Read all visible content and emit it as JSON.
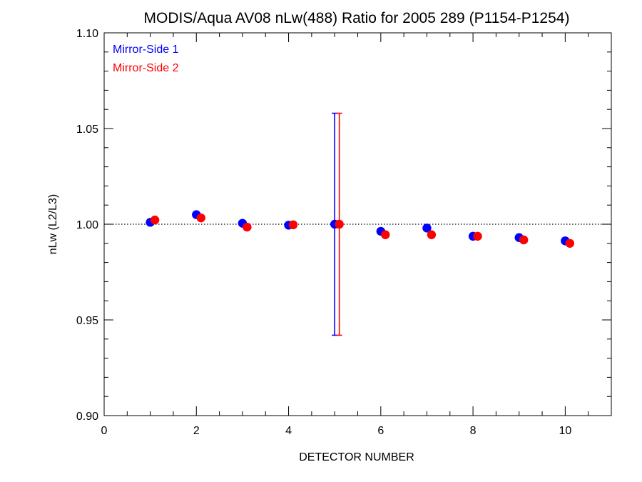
{
  "chart_data": {
    "type": "scatter",
    "title": "MODIS/Aqua AV08 nLw(488) Ratio for 2005 289 (P1154-P1254)",
    "xlabel": "DETECTOR NUMBER",
    "ylabel": "nLw (L2/L3)",
    "xlim": [
      0,
      11
    ],
    "ylim": [
      0.9,
      1.1
    ],
    "xticks": [
      0,
      2,
      4,
      6,
      8,
      10
    ],
    "xtick_labels": [
      "0",
      "2",
      "4",
      "6",
      "8",
      "10"
    ],
    "yticks": [
      0.9,
      0.95,
      1.0,
      1.05,
      1.1
    ],
    "ytick_labels": [
      "0.90",
      "0.95",
      "1.00",
      "1.05",
      "1.10"
    ],
    "reference_line": 1.0,
    "legend_position": "top-left",
    "series": [
      {
        "name": "Mirror-Side 1",
        "color": "#0000ff",
        "x": [
          1,
          2,
          3,
          4,
          5,
          6,
          7,
          8,
          9,
          10
        ],
        "y": [
          1.001,
          1.005,
          1.0005,
          0.9995,
          1.0,
          0.9963,
          0.998,
          0.9937,
          0.993,
          0.9913
        ]
      },
      {
        "name": "Mirror-Side 2",
        "color": "#ff0000",
        "x": [
          1.1,
          2.1,
          3.1,
          4.1,
          5.1,
          6.1,
          7.1,
          8.1,
          9.1,
          10.1
        ],
        "y": [
          1.0022,
          1.0033,
          0.9985,
          0.9997,
          1.0,
          0.9945,
          0.9945,
          0.9937,
          0.9918,
          0.99
        ]
      }
    ],
    "error_bars": [
      {
        "series": "Mirror-Side 1",
        "x": 5,
        "low": 0.942,
        "high": 1.058,
        "color": "#0000ff"
      },
      {
        "series": "Mirror-Side 2",
        "x": 5.1,
        "low": 0.942,
        "high": 1.058,
        "color": "#ff0000"
      }
    ]
  }
}
